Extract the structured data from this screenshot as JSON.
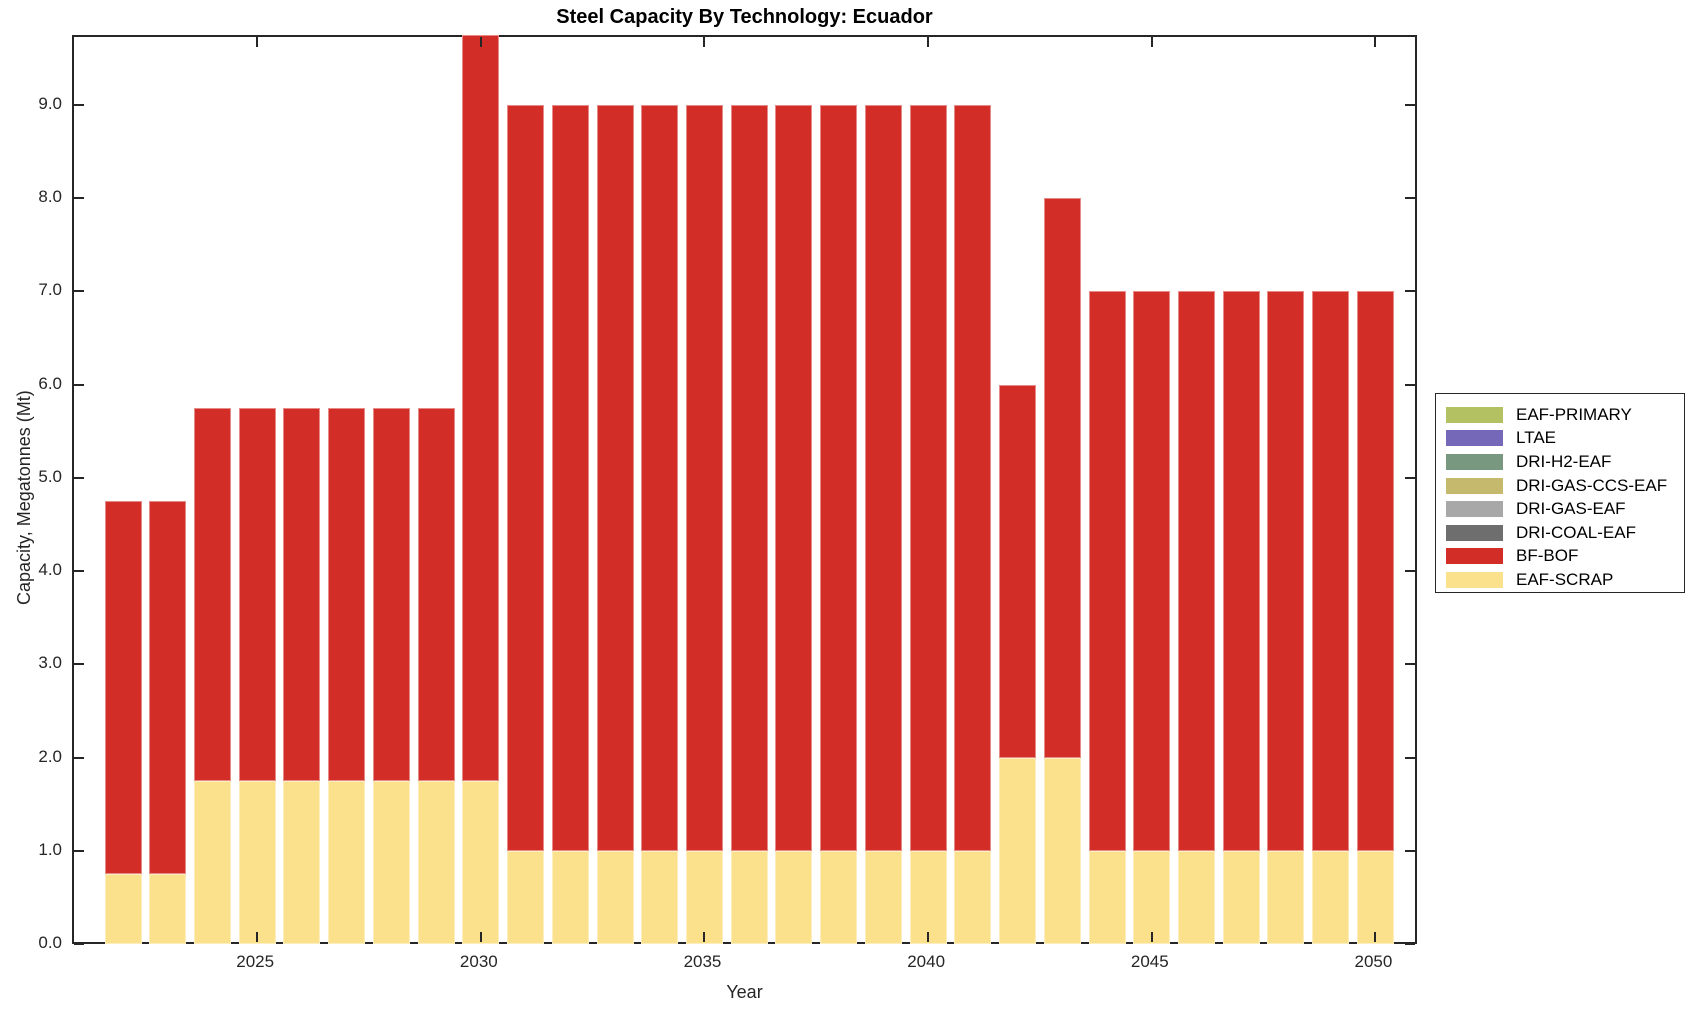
{
  "chart_data": {
    "type": "bar",
    "stacked": true,
    "title": "Steel Capacity By Technology: Ecuador",
    "xlabel": "Year",
    "ylabel": "Capacity, Megatonnes (Mt)",
    "x": [
      2022,
      2023,
      2024,
      2025,
      2026,
      2027,
      2028,
      2029,
      2030,
      2031,
      2032,
      2033,
      2034,
      2035,
      2036,
      2037,
      2038,
      2039,
      2040,
      2041,
      2042,
      2043,
      2044,
      2045,
      2046,
      2047,
      2048,
      2049,
      2050
    ],
    "series": [
      {
        "name": "EAF-PRIMARY",
        "color": "#b4c163",
        "values": [
          0,
          0,
          0,
          0,
          0,
          0,
          0,
          0,
          0,
          0,
          0,
          0,
          0,
          0,
          0,
          0,
          0,
          0,
          0,
          0,
          0,
          0,
          0,
          0,
          0,
          0,
          0,
          0,
          0
        ]
      },
      {
        "name": "LTAE",
        "color": "#7568b8",
        "values": [
          0,
          0,
          0,
          0,
          0,
          0,
          0,
          0,
          0,
          0,
          0,
          0,
          0,
          0,
          0,
          0,
          0,
          0,
          0,
          0,
          0,
          0,
          0,
          0,
          0,
          0,
          0,
          0,
          0
        ]
      },
      {
        "name": "DRI-H2-EAF",
        "color": "#78997f",
        "values": [
          0,
          0,
          0,
          0,
          0,
          0,
          0,
          0,
          0,
          0,
          0,
          0,
          0,
          0,
          0,
          0,
          0,
          0,
          0,
          0,
          0,
          0,
          0,
          0,
          0,
          0,
          0,
          0,
          0
        ]
      },
      {
        "name": "DRI-GAS-CCS-EAF",
        "color": "#c5b96d",
        "values": [
          0,
          0,
          0,
          0,
          0,
          0,
          0,
          0,
          0,
          0,
          0,
          0,
          0,
          0,
          0,
          0,
          0,
          0,
          0,
          0,
          0,
          0,
          0,
          0,
          0,
          0,
          0,
          0,
          0
        ]
      },
      {
        "name": "DRI-GAS-EAF",
        "color": "#a8a8a8",
        "values": [
          0,
          0,
          0,
          0,
          0,
          0,
          0,
          0,
          0,
          0,
          0,
          0,
          0,
          0,
          0,
          0,
          0,
          0,
          0,
          0,
          0,
          0,
          0,
          0,
          0,
          0,
          0,
          0,
          0
        ]
      },
      {
        "name": "DRI-COAL-EAF",
        "color": "#6e6e6e",
        "values": [
          0,
          0,
          0,
          0,
          0,
          0,
          0,
          0,
          0,
          0,
          0,
          0,
          0,
          0,
          0,
          0,
          0,
          0,
          0,
          0,
          0,
          0,
          0,
          0,
          0,
          0,
          0,
          0,
          0
        ]
      },
      {
        "name": "BF-BOF",
        "color": "#d22d26",
        "values": [
          4.0,
          4.0,
          4.0,
          4.0,
          4.0,
          4.0,
          4.0,
          4.0,
          8.0,
          8.0,
          8.0,
          8.0,
          8.0,
          8.0,
          8.0,
          8.0,
          8.0,
          8.0,
          8.0,
          8.0,
          4.0,
          6.0,
          6.0,
          6.0,
          6.0,
          6.0,
          6.0,
          6.0,
          6.0
        ]
      },
      {
        "name": "EAF-SCRAP",
        "color": "#fce18c",
        "values": [
          0.75,
          0.75,
          1.75,
          1.75,
          1.75,
          1.75,
          1.75,
          1.75,
          1.75,
          1.0,
          1.0,
          1.0,
          1.0,
          1.0,
          1.0,
          1.0,
          1.0,
          1.0,
          1.0,
          1.0,
          2.0,
          2.0,
          1.0,
          1.0,
          1.0,
          1.0,
          1.0,
          1.0,
          1.0
        ]
      }
    ],
    "stack_order": [
      "EAF-SCRAP",
      "BF-BOF",
      "DRI-COAL-EAF",
      "DRI-GAS-EAF",
      "DRI-GAS-CCS-EAF",
      "DRI-H2-EAF",
      "LTAE",
      "EAF-PRIMARY"
    ],
    "ylim": [
      0,
      9.75
    ],
    "yticks": [
      {
        "value": 0,
        "label": "0.0"
      },
      {
        "value": 1,
        "label": "1.0"
      },
      {
        "value": 2,
        "label": "2.0"
      },
      {
        "value": 3,
        "label": "3.0"
      },
      {
        "value": 4,
        "label": "4.0"
      },
      {
        "value": 5,
        "label": "5.0"
      },
      {
        "value": 6,
        "label": "6.0"
      },
      {
        "value": 7,
        "label": "7.0"
      },
      {
        "value": 8,
        "label": "8.0"
      },
      {
        "value": 9,
        "label": "9.0"
      }
    ],
    "xticks": [
      {
        "value": 2025,
        "label": "2025"
      },
      {
        "value": 2030,
        "label": "2030"
      },
      {
        "value": 2035,
        "label": "2035"
      },
      {
        "value": 2040,
        "label": "2040"
      },
      {
        "value": 2045,
        "label": "2045"
      },
      {
        "value": 2050,
        "label": "2050"
      }
    ],
    "legend_position": "right",
    "grid": false
  }
}
